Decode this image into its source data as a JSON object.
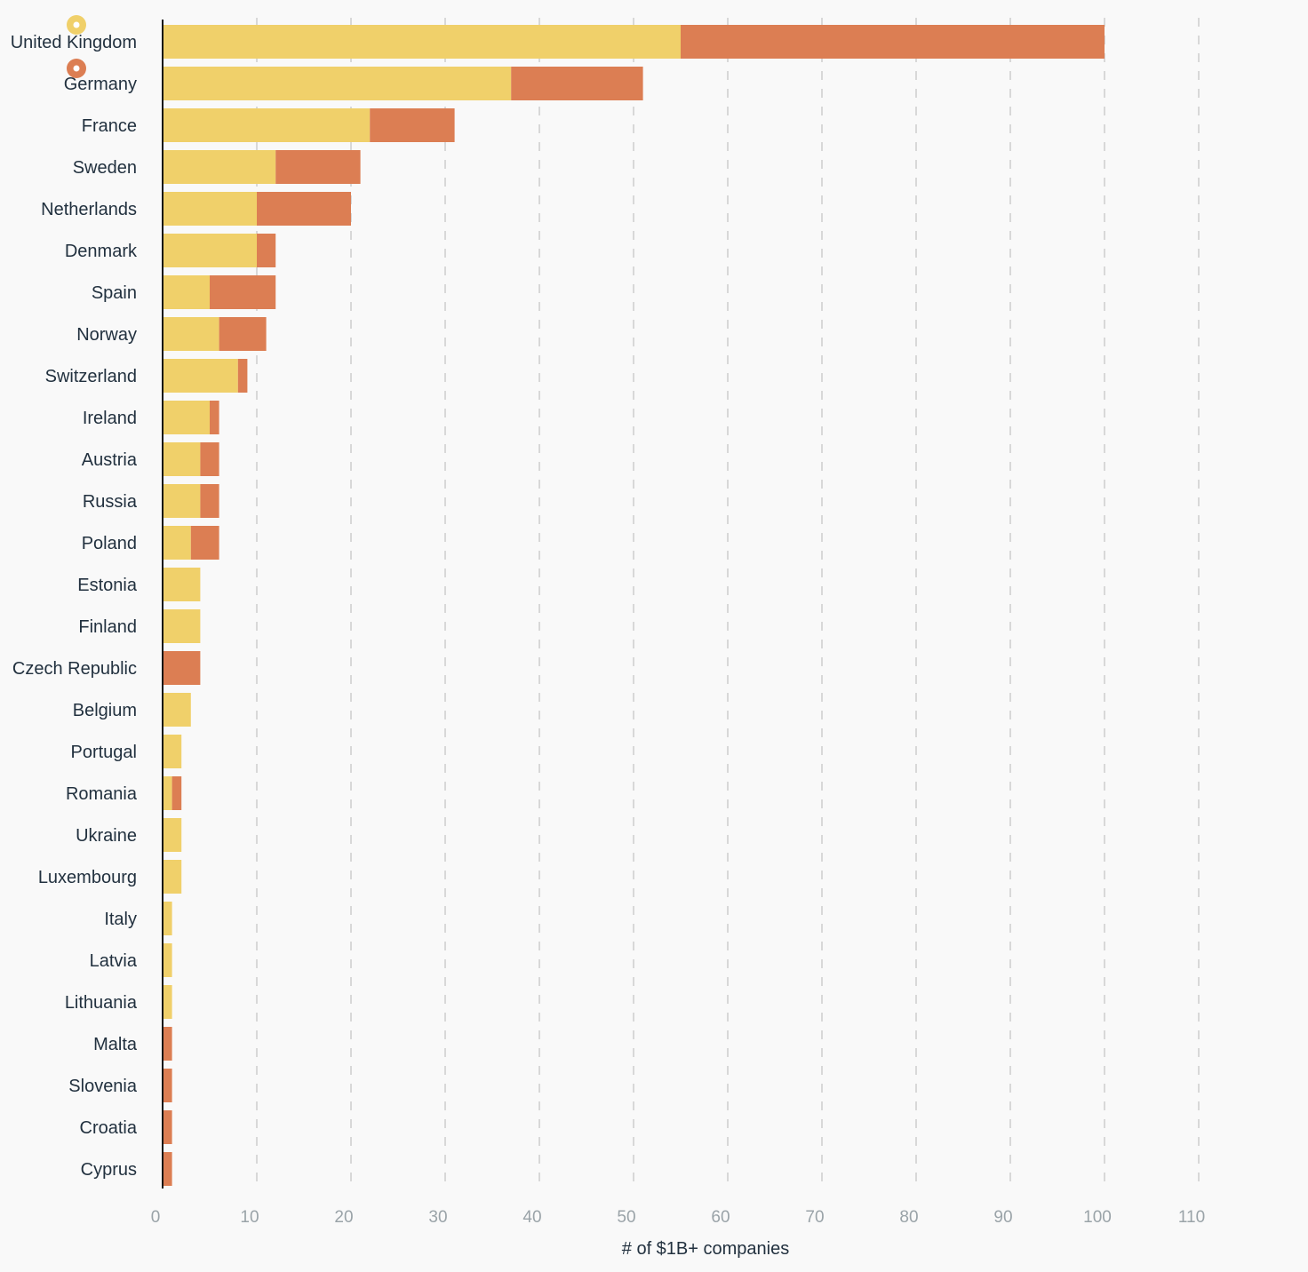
{
  "colors": {
    "background": "#f9f9f9",
    "series_a": "#f0d06a",
    "series_b": "#dc7e53",
    "grid": "#d8d8d8",
    "axis": "#111111",
    "label": "#22313f",
    "tick": "#9aa3a8"
  },
  "chart_data": {
    "type": "bar",
    "orientation": "horizontal",
    "stacked": true,
    "categories": [
      "United Kingdom",
      "Germany",
      "France",
      "Sweden",
      "Netherlands",
      "Denmark",
      "Spain",
      "Norway",
      "Switzerland",
      "Ireland",
      "Austria",
      "Russia",
      "Poland",
      "Estonia",
      "Finland",
      "Czech Republic",
      "Belgium",
      "Portugal",
      "Romania",
      "Ukraine",
      "Luxembourg",
      "Italy",
      "Latvia",
      "Lithuania",
      "Malta",
      "Slovenia",
      "Croatia",
      "Cyprus"
    ],
    "series": [
      {
        "color": "#f0d06a",
        "values": [
          55,
          37,
          22,
          12,
          10,
          10,
          5,
          6,
          8,
          5,
          4,
          4,
          3,
          4,
          4,
          0,
          3,
          2,
          1,
          2,
          2,
          1,
          1,
          1,
          0,
          0,
          0,
          0
        ]
      },
      {
        "color": "#dc7e53",
        "values": [
          45,
          14,
          9,
          9,
          10,
          2,
          7,
          5,
          1,
          1,
          2,
          2,
          3,
          0,
          0,
          4,
          0,
          0,
          1,
          0,
          0,
          0,
          0,
          0,
          1,
          1,
          1,
          1
        ]
      }
    ],
    "legend": {
      "placement": "top-left",
      "style": "circle-markers"
    },
    "xlabel": "# of $1B+ companies",
    "ylabel": "",
    "xlim": [
      0,
      110
    ],
    "xticks": [
      0,
      10,
      20,
      30,
      40,
      50,
      60,
      70,
      80,
      90,
      100,
      110
    ],
    "grid": {
      "vertical": true,
      "style": "dashed"
    }
  }
}
